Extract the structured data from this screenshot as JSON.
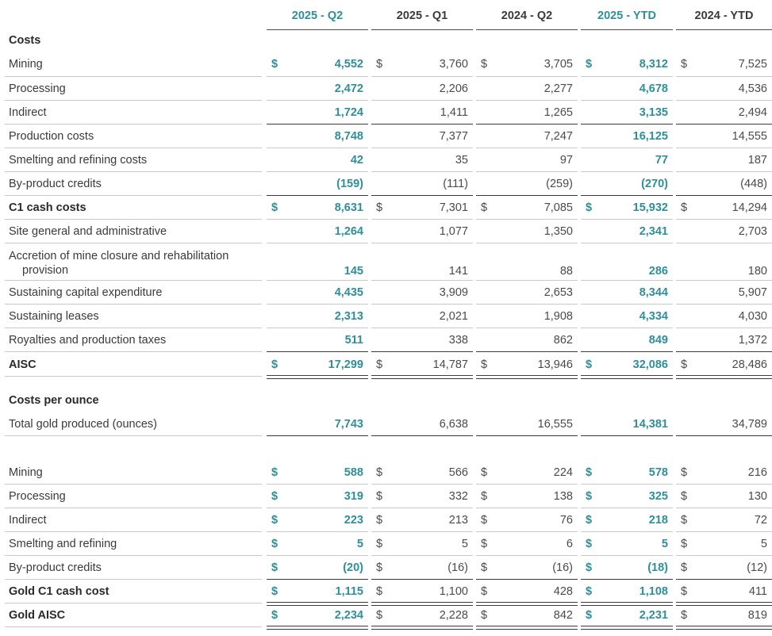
{
  "columns": [
    {
      "label": "2025 - Q2",
      "current": true
    },
    {
      "label": "2025 - Q1",
      "current": false
    },
    {
      "label": "2024 - Q2",
      "current": false
    },
    {
      "label": "2025 - YTD",
      "current": true
    },
    {
      "label": "2024 - YTD",
      "current": false
    }
  ],
  "currency_symbol": "$",
  "rows": [
    {
      "label": "Costs",
      "type": "section"
    },
    {
      "label": "Mining",
      "dollar": true,
      "values": [
        "4,552",
        "3,760",
        "3,705",
        "8,312",
        "7,525"
      ]
    },
    {
      "label": "Processing",
      "values": [
        "2,472",
        "2,206",
        "2,277",
        "4,678",
        "4,536"
      ]
    },
    {
      "label": "Indirect",
      "values": [
        "1,724",
        "1,411",
        "1,265",
        "3,135",
        "2,494"
      ],
      "rule": "sub"
    },
    {
      "label": "Production costs",
      "values": [
        "8,748",
        "7,377",
        "7,247",
        "16,125",
        "14,555"
      ]
    },
    {
      "label": "Smelting and refining costs",
      "values": [
        "42",
        "35",
        "97",
        "77",
        "187"
      ]
    },
    {
      "label": "By-product credits",
      "values": [
        "(159)",
        "(111)",
        "(259)",
        "(270)",
        "(448)"
      ],
      "rule": "sub"
    },
    {
      "label": "C1 cash costs",
      "bold": true,
      "dollar": true,
      "values": [
        "8,631",
        "7,301",
        "7,085",
        "15,932",
        "14,294"
      ]
    },
    {
      "label": "Site general and administrative",
      "values": [
        "1,264",
        "1,077",
        "1,350",
        "2,341",
        "2,703"
      ]
    },
    {
      "label": "Accretion of mine closure and rehabilitation",
      "label2": "provision",
      "values": [
        "145",
        "141",
        "88",
        "286",
        "180"
      ]
    },
    {
      "label": "Sustaining capital expenditure",
      "values": [
        "4,435",
        "3,909",
        "2,653",
        "8,344",
        "5,907"
      ]
    },
    {
      "label": "Sustaining leases",
      "values": [
        "2,313",
        "2,021",
        "1,908",
        "4,334",
        "4,030"
      ]
    },
    {
      "label": "Royalties and production taxes",
      "values": [
        "511",
        "338",
        "862",
        "849",
        "1,372"
      ],
      "rule": "sub"
    },
    {
      "label": "AISC",
      "bold": true,
      "dollar": true,
      "values": [
        "17,299",
        "14,787",
        "13,946",
        "32,086",
        "28,486"
      ],
      "rule": "double"
    },
    {
      "label": "Costs per ounce",
      "type": "section"
    },
    {
      "label": "Total gold produced (ounces)",
      "values": [
        "7,743",
        "6,638",
        "16,555",
        "14,381",
        "34,789"
      ],
      "rule": "sub"
    },
    {
      "label": "Mining",
      "dollar": true,
      "values": [
        "588",
        "566",
        "224",
        "578",
        "216"
      ]
    },
    {
      "label": "Processing",
      "dollar": true,
      "values": [
        "319",
        "332",
        "138",
        "325",
        "130"
      ]
    },
    {
      "label": "Indirect",
      "dollar": true,
      "values": [
        "223",
        "213",
        "76",
        "218",
        "72"
      ]
    },
    {
      "label": "Smelting and refining",
      "dollar": true,
      "values": [
        "5",
        "5",
        "6",
        "5",
        "5"
      ]
    },
    {
      "label": "By-product credits",
      "dollar": true,
      "values": [
        "(20)",
        "(16)",
        "(16)",
        "(18)",
        "(12)"
      ],
      "rule": "sub"
    },
    {
      "label": "Gold C1 cash cost",
      "bold": true,
      "dollar": true,
      "values": [
        "1,115",
        "1,100",
        "428",
        "1,108",
        "411"
      ],
      "rule": "double"
    },
    {
      "label": "Gold AISC",
      "bold": true,
      "dollar": true,
      "values": [
        "2,234",
        "2,228",
        "842",
        "2,231",
        "819"
      ],
      "rule": "double"
    }
  ]
}
